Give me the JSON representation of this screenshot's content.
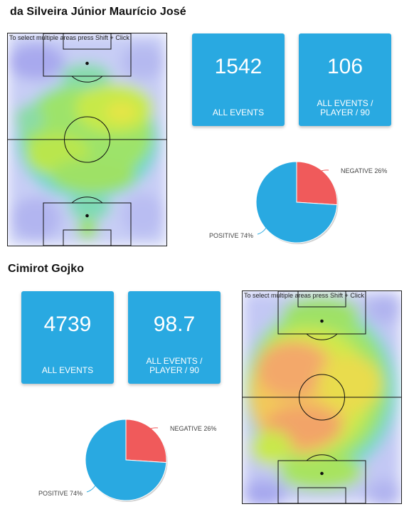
{
  "hint_text": "To select multiple areas press Shift + Click",
  "players": [
    {
      "name": "da Silveira Júnior Maurício José",
      "all_events_value": "1542",
      "all_events_label": "ALL EVENTS",
      "per90_value": "106",
      "per90_label": "ALL EVENTS / PLAYER / 90",
      "negative_label": "NEGATIVE 26%",
      "positive_label": "POSITIVE 74%"
    },
    {
      "name": "Cimirot Gojko",
      "all_events_value": "4739",
      "all_events_label": "ALL EVENTS",
      "per90_value": "98.7",
      "per90_label": "ALL EVENTS / PLAYER / 90",
      "negative_label": "NEGATIVE 26%",
      "positive_label": "POSITIVE 74%"
    }
  ],
  "chart_data": [
    {
      "type": "pie",
      "categories": [
        "NEGATIVE",
        "POSITIVE"
      ],
      "values": [
        26,
        74
      ],
      "colors": [
        "#f05a5b",
        "#29a9e1"
      ]
    },
    {
      "type": "pie",
      "categories": [
        "NEGATIVE",
        "POSITIVE"
      ],
      "values": [
        26,
        74
      ],
      "colors": [
        "#f05a5b",
        "#29a9e1"
      ]
    }
  ]
}
